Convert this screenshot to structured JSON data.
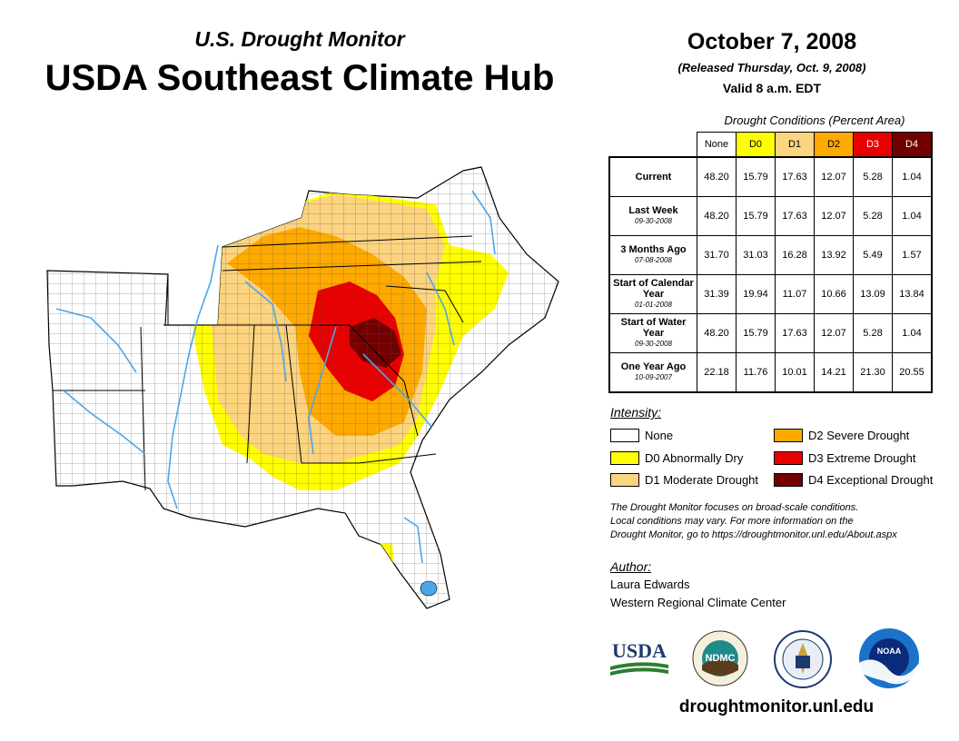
{
  "header": {
    "subtitle": "U.S. Drought Monitor",
    "title": "USDA Southeast Climate Hub",
    "date": "October 7, 2008",
    "released": "(Released Thursday, Oct. 9, 2008)",
    "valid": "Valid 8 a.m. EDT"
  },
  "table": {
    "caption": "Drought Conditions (Percent Area)",
    "columns": [
      "None",
      "D0",
      "D1",
      "D2",
      "D3",
      "D4"
    ],
    "rows": [
      {
        "label": "Current",
        "date": "",
        "values": [
          "48.20",
          "15.79",
          "17.63",
          "12.07",
          "5.28",
          "1.04"
        ]
      },
      {
        "label": "Last Week",
        "date": "09-30-2008",
        "values": [
          "48.20",
          "15.79",
          "17.63",
          "12.07",
          "5.28",
          "1.04"
        ]
      },
      {
        "label": "3 Months Ago",
        "date": "07-08-2008",
        "values": [
          "31.70",
          "31.03",
          "16.28",
          "13.92",
          "5.49",
          "1.57"
        ]
      },
      {
        "label": "Start of Calendar Year",
        "date": "01-01-2008",
        "values": [
          "31.39",
          "19.94",
          "11.07",
          "10.66",
          "13.09",
          "13.84"
        ]
      },
      {
        "label": "Start of Water Year",
        "date": "09-30-2008",
        "values": [
          "48.20",
          "15.79",
          "17.63",
          "12.07",
          "5.28",
          "1.04"
        ]
      },
      {
        "label": "One Year Ago",
        "date": "10-09-2007",
        "values": [
          "22.18",
          "11.76",
          "10.01",
          "14.21",
          "21.30",
          "20.55"
        ]
      }
    ]
  },
  "legend": {
    "heading": "Intensity:",
    "items": [
      {
        "label": "None",
        "color": "#ffffff"
      },
      {
        "label": "D0 Abnormally Dry",
        "color": "#ffff00"
      },
      {
        "label": "D1 Moderate Drought",
        "color": "#fcd37f"
      },
      {
        "label": "D2 Severe Drought",
        "color": "#ffaa00"
      },
      {
        "label": "D3 Extreme Drought",
        "color": "#e60000"
      },
      {
        "label": "D4 Exceptional Drought",
        "color": "#730000"
      }
    ]
  },
  "note": {
    "line1": "The Drought Monitor focuses on broad-scale conditions.",
    "line2": "Local conditions may vary. For more information on the",
    "line3": "Drought Monitor, go to https://droughtmonitor.unl.edu/About.aspx"
  },
  "author": {
    "heading": "Author:",
    "name": "Laura Edwards",
    "org": "Western Regional Climate Center"
  },
  "logos": {
    "usda": "USDA",
    "ndmc": "NDMC",
    "noaa": "NOAA"
  },
  "footer": {
    "url": "droughtmonitor.unl.edu"
  },
  "colors": {
    "d0": "#ffff00",
    "d1": "#fcd37f",
    "d2": "#ffaa00",
    "d3": "#e60000",
    "d4": "#730000",
    "water": "#4da6e8"
  }
}
